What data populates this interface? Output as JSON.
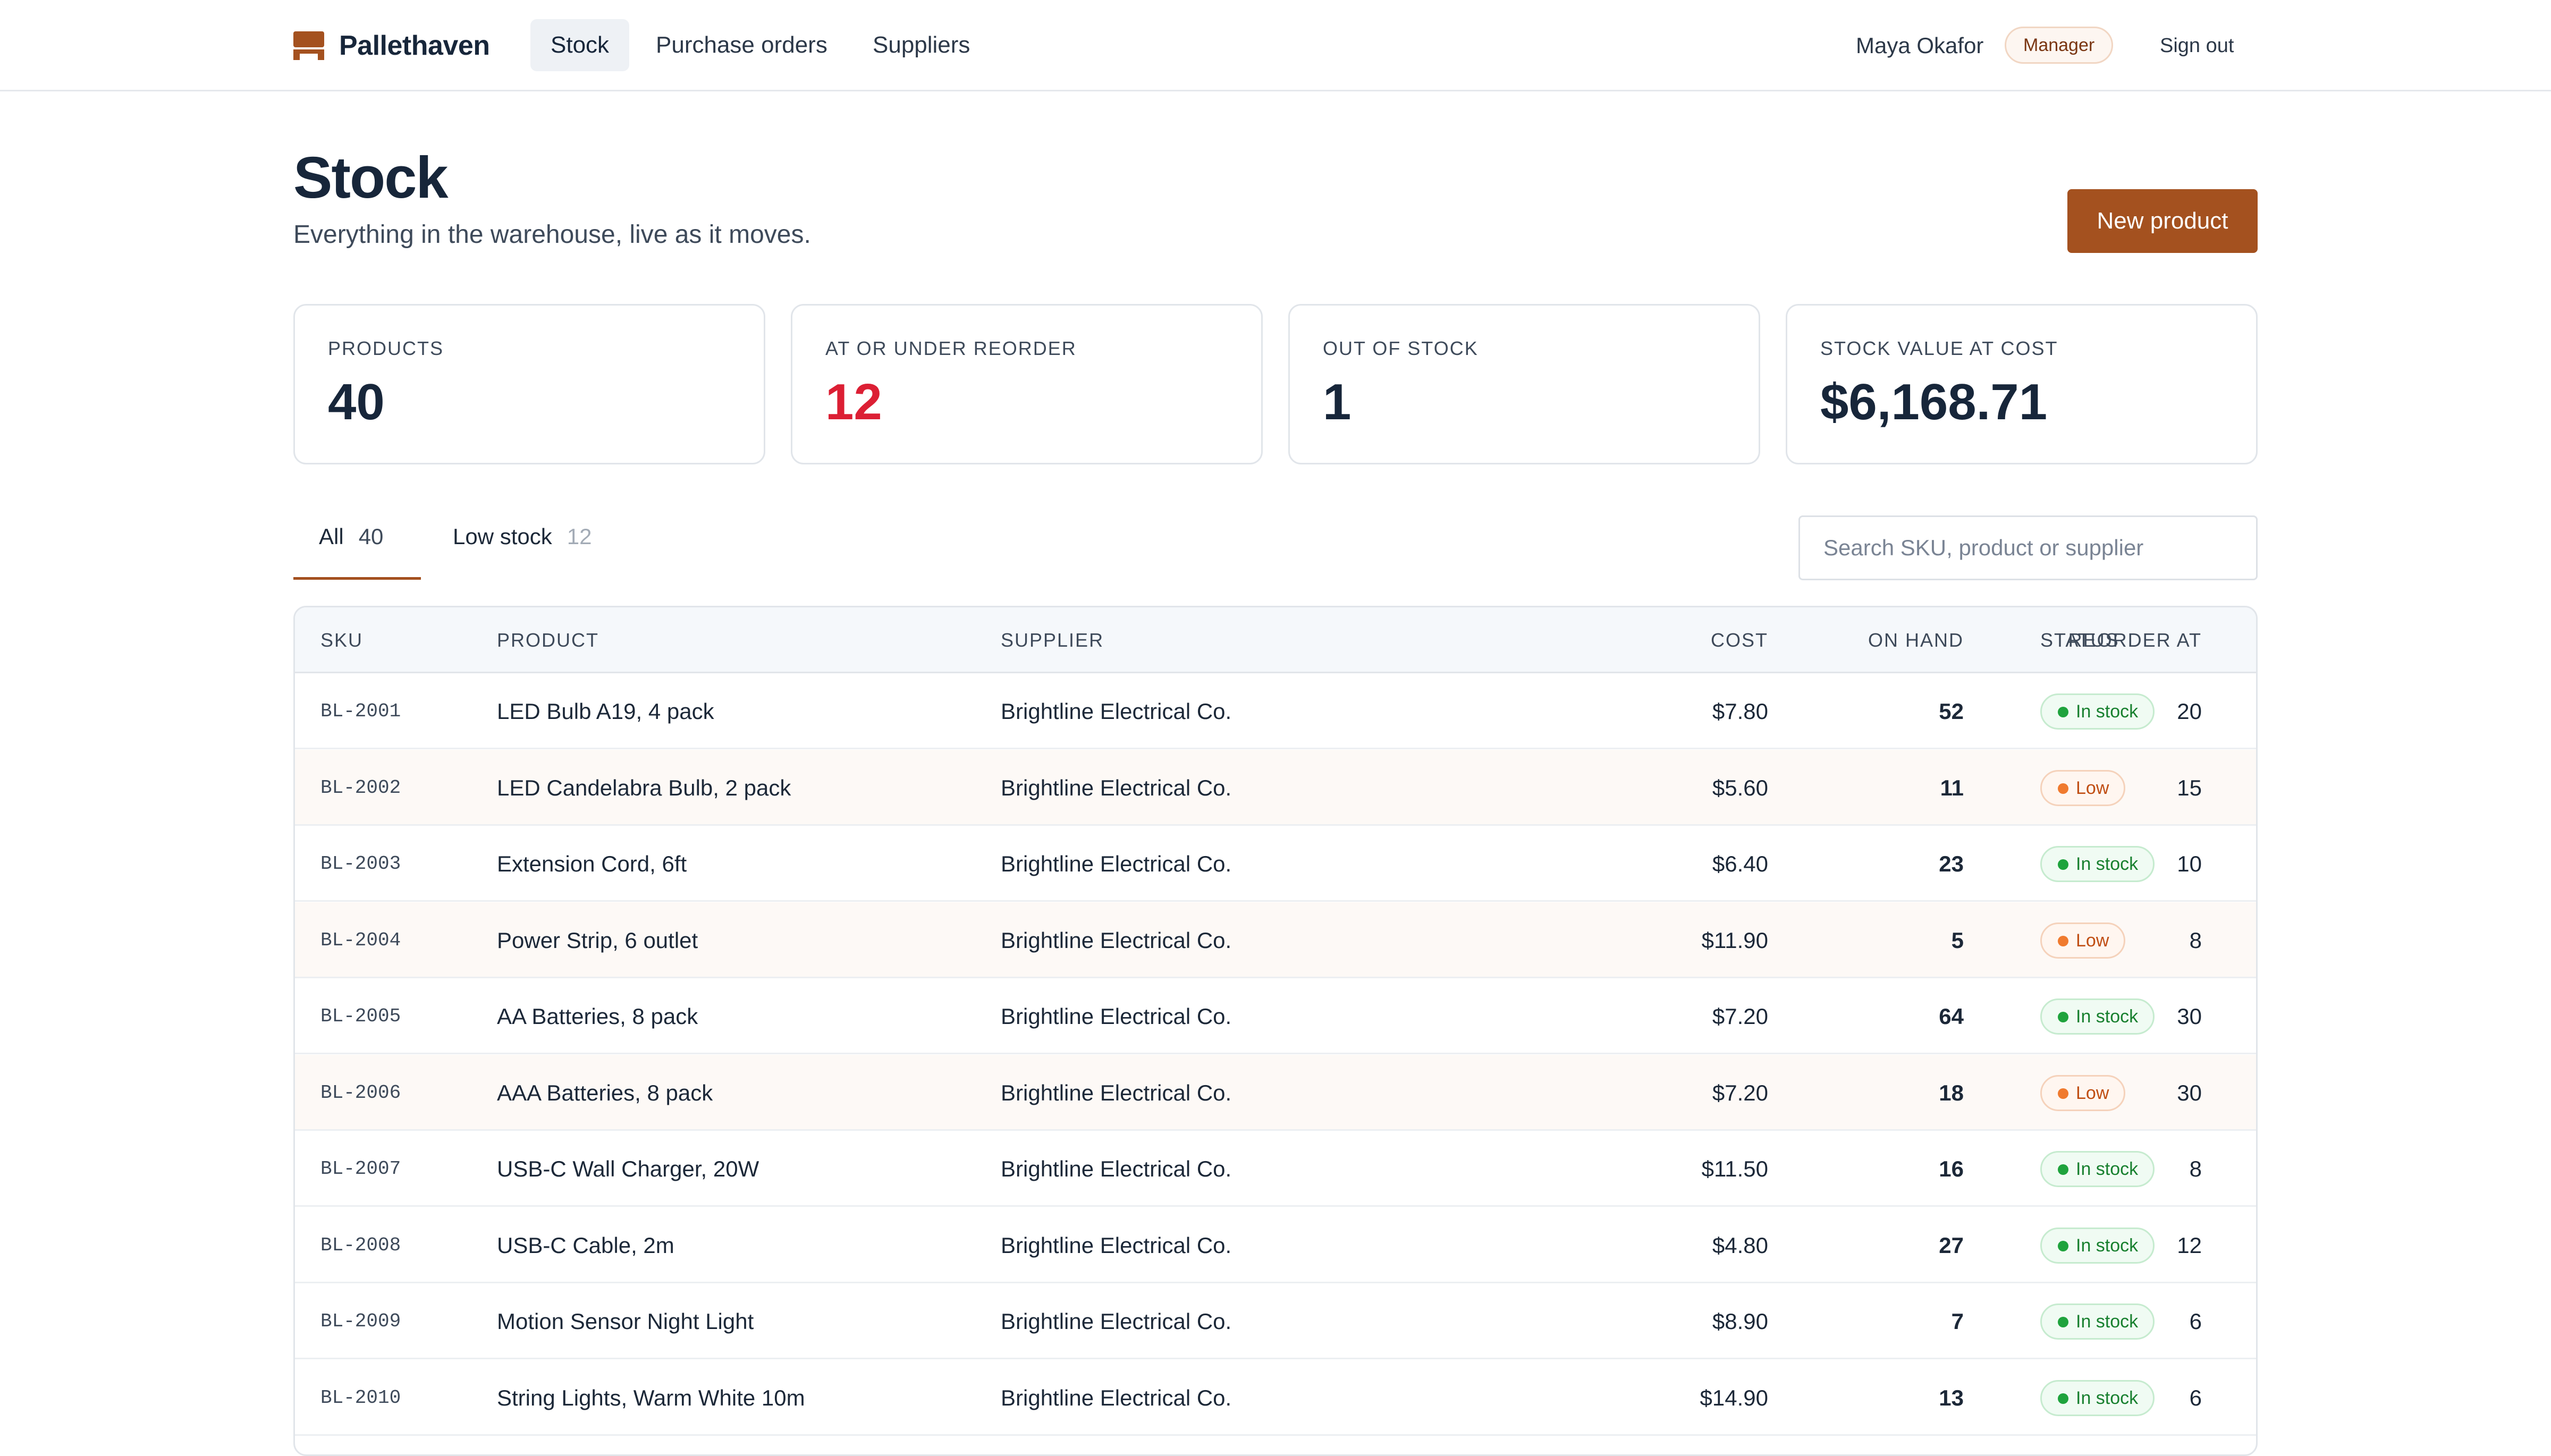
{
  "app": {
    "name": "Pallethaven",
    "nav": [
      {
        "label": "Stock",
        "active": true
      },
      {
        "label": "Purchase orders",
        "active": false
      },
      {
        "label": "Suppliers",
        "active": false
      }
    ],
    "user": {
      "name": "Maya Okafor",
      "role": "Manager"
    },
    "sign_out_label": "Sign out"
  },
  "header": {
    "title": "Stock",
    "subtitle": "Everything in the warehouse, live as it moves.",
    "new_product_label": "New product"
  },
  "stats": [
    {
      "label": "PRODUCTS",
      "value": "40",
      "alert": false
    },
    {
      "label": "AT OR UNDER REORDER",
      "value": "12",
      "alert": true
    },
    {
      "label": "OUT OF STOCK",
      "value": "1",
      "alert": false
    },
    {
      "label": "STOCK VALUE AT COST",
      "value": "$6,168.71",
      "alert": false
    }
  ],
  "filters": {
    "tabs": [
      {
        "label": "All",
        "count": "40",
        "active": true
      },
      {
        "label": "Low stock",
        "count": "12",
        "active": false
      }
    ],
    "search_placeholder": "Search SKU, product or supplier"
  },
  "table": {
    "columns": [
      "SKU",
      "PRODUCT",
      "SUPPLIER",
      "COST",
      "ON HAND",
      "REORDER AT",
      "STATUS"
    ],
    "rows": [
      {
        "sku": "BL-2001",
        "product": "LED Bulb A19, 4 pack",
        "supplier": "Brightline Electrical Co.",
        "cost": "$7.80",
        "on_hand": "52",
        "reorder_at": "20",
        "status": "In stock"
      },
      {
        "sku": "BL-2002",
        "product": "LED Candelabra Bulb, 2 pack",
        "supplier": "Brightline Electrical Co.",
        "cost": "$5.60",
        "on_hand": "11",
        "reorder_at": "15",
        "status": "Low"
      },
      {
        "sku": "BL-2003",
        "product": "Extension Cord, 6ft",
        "supplier": "Brightline Electrical Co.",
        "cost": "$6.40",
        "on_hand": "23",
        "reorder_at": "10",
        "status": "In stock"
      },
      {
        "sku": "BL-2004",
        "product": "Power Strip, 6 outlet",
        "supplier": "Brightline Electrical Co.",
        "cost": "$11.90",
        "on_hand": "5",
        "reorder_at": "8",
        "status": "Low"
      },
      {
        "sku": "BL-2005",
        "product": "AA Batteries, 8 pack",
        "supplier": "Brightline Electrical Co.",
        "cost": "$7.20",
        "on_hand": "64",
        "reorder_at": "30",
        "status": "In stock"
      },
      {
        "sku": "BL-2006",
        "product": "AAA Batteries, 8 pack",
        "supplier": "Brightline Electrical Co.",
        "cost": "$7.20",
        "on_hand": "18",
        "reorder_at": "30",
        "status": "Low"
      },
      {
        "sku": "BL-2007",
        "product": "USB-C Wall Charger, 20W",
        "supplier": "Brightline Electrical Co.",
        "cost": "$11.50",
        "on_hand": "16",
        "reorder_at": "8",
        "status": "In stock"
      },
      {
        "sku": "BL-2008",
        "product": "USB-C Cable, 2m",
        "supplier": "Brightline Electrical Co.",
        "cost": "$4.80",
        "on_hand": "27",
        "reorder_at": "12",
        "status": "In stock"
      },
      {
        "sku": "BL-2009",
        "product": "Motion Sensor Night Light",
        "supplier": "Brightline Electrical Co.",
        "cost": "$8.90",
        "on_hand": "7",
        "reorder_at": "6",
        "status": "In stock"
      },
      {
        "sku": "BL-2010",
        "product": "String Lights, Warm White 10m",
        "supplier": "Brightline Electrical Co.",
        "cost": "$14.90",
        "on_hand": "13",
        "reorder_at": "6",
        "status": "In stock"
      }
    ]
  },
  "colors": {
    "accent": "#a4511f",
    "alert": "#dc1f34",
    "in_stock": "#18802f",
    "low": "#c04e13"
  },
  "icons": {
    "brand": "pallet-icon"
  }
}
